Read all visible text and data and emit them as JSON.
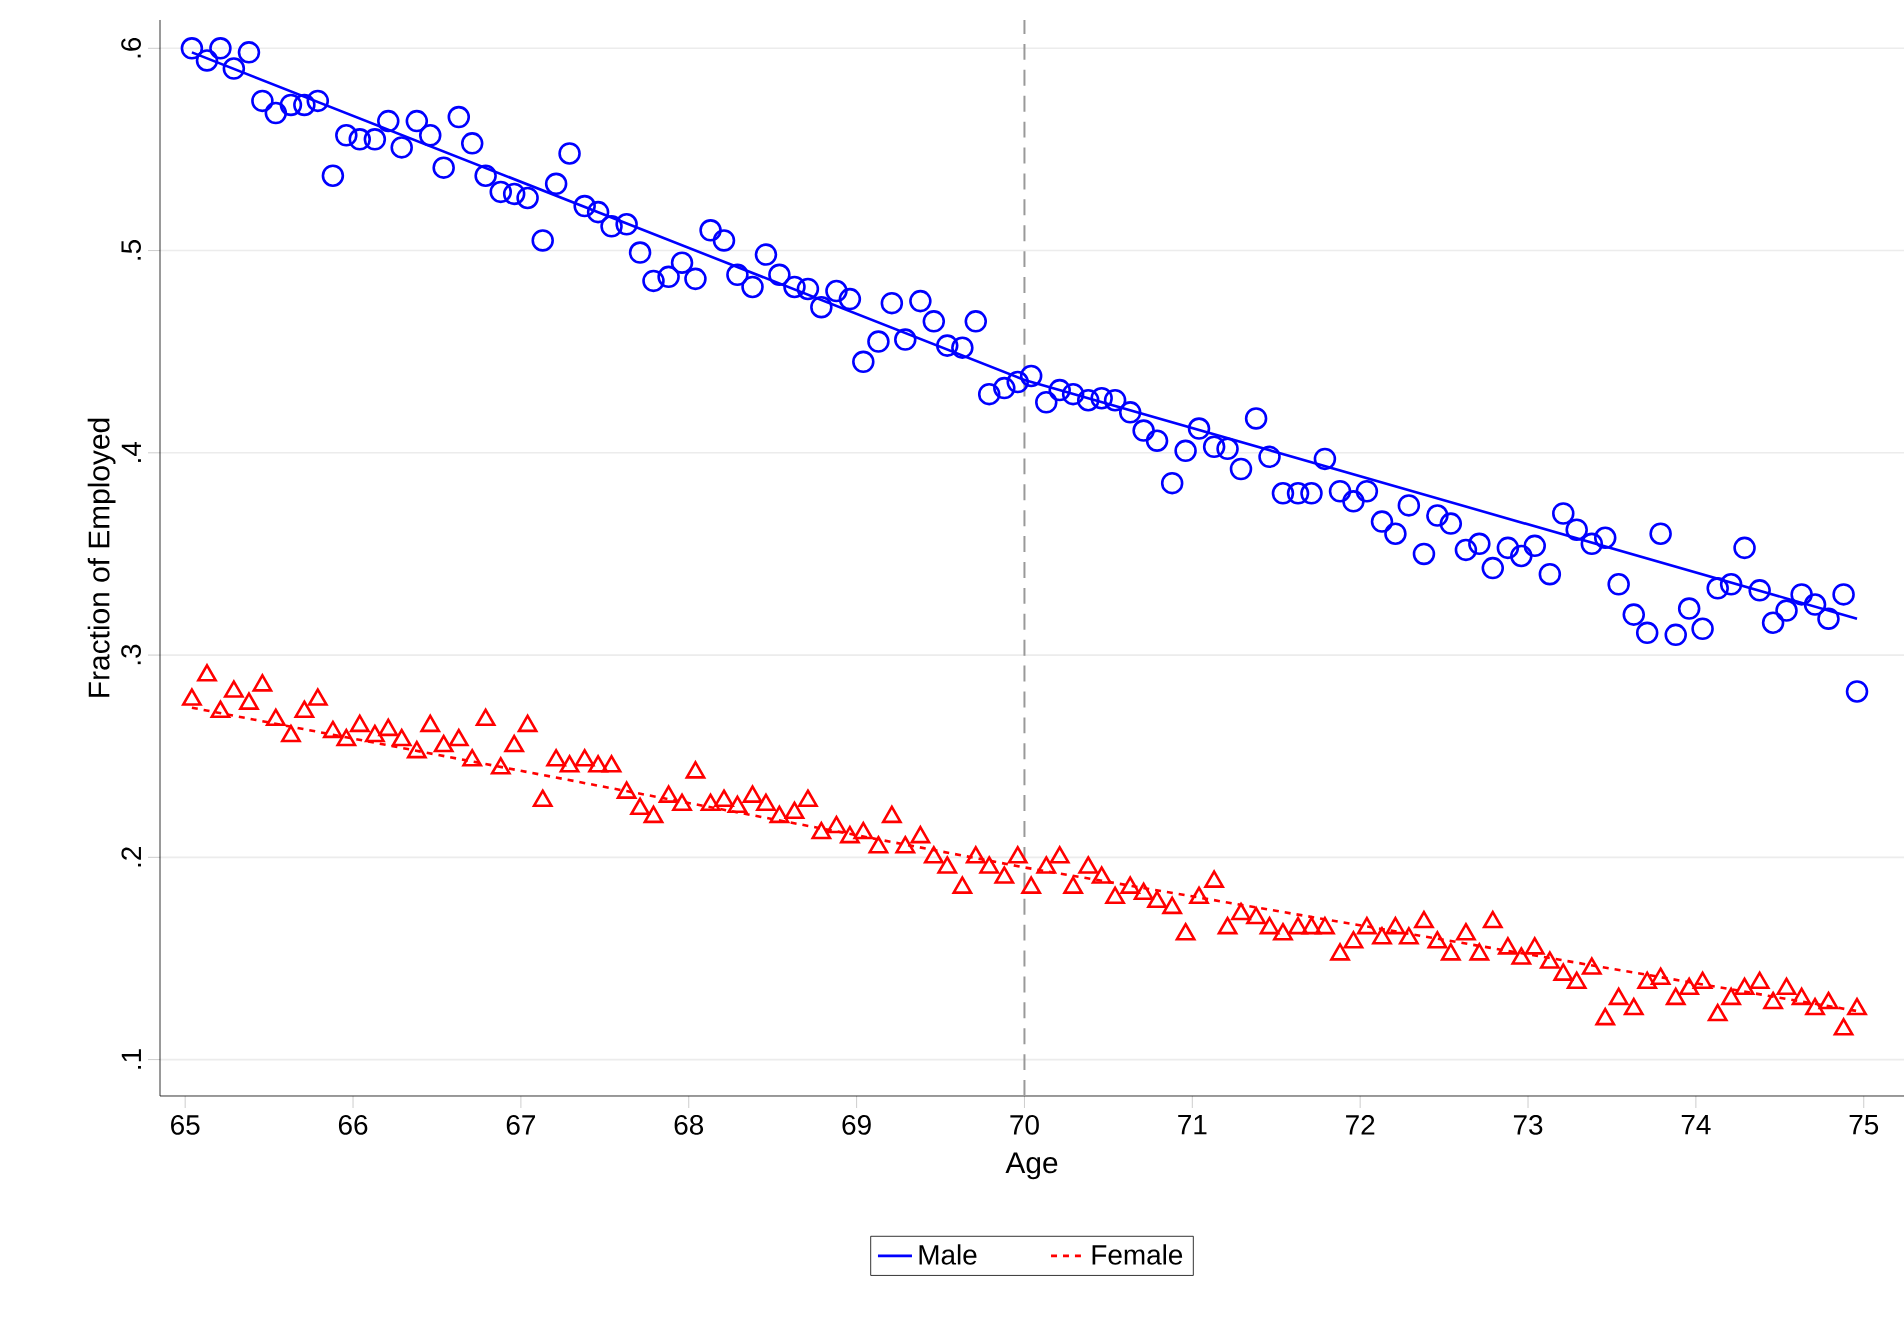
{
  "chart_data": {
    "type": "scatter",
    "xlabel": "Age",
    "ylabel": "Fraction of Employed",
    "xlim": [
      64.85,
      75.24
    ],
    "ylim": [
      0.082,
      0.614
    ],
    "xticks": [
      65,
      66,
      67,
      68,
      69,
      70,
      71,
      72,
      73,
      74,
      75
    ],
    "yticks": [
      {
        "value": 0.1,
        "label": ".1"
      },
      {
        "value": 0.2,
        "label": ".2"
      },
      {
        "value": 0.3,
        "label": ".3"
      },
      {
        "value": 0.4,
        "label": ".4"
      },
      {
        "value": 0.5,
        "label": ".5"
      },
      {
        "value": 0.6,
        "label": ".6"
      }
    ],
    "grid": "y",
    "legend": "bottom",
    "ref_lines": [
      {
        "axis": "x",
        "value": 70,
        "color": "#999999",
        "line_style": "dashed"
      }
    ],
    "x": [
      65.04,
      65.13,
      65.21,
      65.29,
      65.38,
      65.46,
      65.54,
      65.63,
      65.71,
      65.79,
      65.88,
      65.96,
      66.04,
      66.13,
      66.21,
      66.29,
      66.38,
      66.46,
      66.54,
      66.63,
      66.71,
      66.79,
      66.88,
      66.96,
      67.04,
      67.13,
      67.21,
      67.29,
      67.38,
      67.46,
      67.54,
      67.63,
      67.71,
      67.79,
      67.88,
      67.96,
      68.04,
      68.13,
      68.21,
      68.29,
      68.38,
      68.46,
      68.54,
      68.63,
      68.71,
      68.79,
      68.88,
      68.96,
      69.04,
      69.13,
      69.21,
      69.29,
      69.38,
      69.46,
      69.54,
      69.63,
      69.71,
      69.79,
      69.88,
      69.96,
      70.04,
      70.13,
      70.21,
      70.29,
      70.38,
      70.46,
      70.54,
      70.63,
      70.71,
      70.79,
      70.88,
      70.96,
      71.04,
      71.13,
      71.21,
      71.29,
      71.38,
      71.46,
      71.54,
      71.63,
      71.71,
      71.79,
      71.88,
      71.96,
      72.04,
      72.13,
      72.21,
      72.29,
      72.38,
      72.46,
      72.54,
      72.63,
      72.71,
      72.79,
      72.88,
      72.96,
      73.04,
      73.13,
      73.21,
      73.29,
      73.38,
      73.46,
      73.54,
      73.63,
      73.71,
      73.79,
      73.88,
      73.96,
      74.04,
      74.13,
      74.21,
      74.29,
      74.38,
      74.46,
      74.54,
      74.63,
      74.71,
      74.79,
      74.88,
      74.96
    ],
    "series": [
      {
        "marker": "circle",
        "color": "#0000ff",
        "values": [
          0.6,
          0.594,
          0.6,
          0.59,
          0.598,
          0.574,
          0.568,
          0.572,
          0.572,
          0.574,
          0.537,
          0.557,
          0.555,
          0.555,
          0.564,
          0.551,
          0.564,
          0.557,
          0.541,
          0.566,
          0.553,
          0.537,
          0.529,
          0.528,
          0.526,
          0.505,
          0.533,
          0.548,
          0.522,
          0.519,
          0.512,
          0.513,
          0.499,
          0.485,
          0.487,
          0.494,
          0.486,
          0.51,
          0.505,
          0.488,
          0.482,
          0.498,
          0.488,
          0.482,
          0.481,
          0.472,
          0.48,
          0.476,
          0.445,
          0.455,
          0.474,
          0.456,
          0.475,
          0.465,
          0.453,
          0.452,
          0.465,
          0.429,
          0.432,
          0.435,
          0.438,
          0.425,
          0.431,
          0.429,
          0.426,
          0.427,
          0.426,
          0.42,
          0.411,
          0.406,
          0.385,
          0.401,
          0.412,
          0.403,
          0.402,
          0.392,
          0.417,
          0.398,
          0.38,
          0.38,
          0.38,
          0.397,
          0.381,
          0.376,
          0.381,
          0.366,
          0.36,
          0.374,
          0.35,
          0.369,
          0.365,
          0.352,
          0.355,
          0.343,
          0.353,
          0.349,
          0.354,
          0.34,
          0.37,
          0.362,
          0.355,
          0.358,
          0.335,
          0.32,
          0.311,
          0.36,
          0.31,
          0.323,
          0.313,
          0.333,
          0.335,
          0.353,
          0.332,
          0.316,
          0.322,
          0.33,
          0.325,
          0.318,
          0.33,
          0.282
        ]
      },
      {
        "marker": "triangle",
        "color": "#ff0000",
        "values": [
          0.278,
          0.29,
          0.272,
          0.282,
          0.276,
          0.285,
          0.268,
          0.26,
          0.272,
          0.278,
          0.262,
          0.258,
          0.265,
          0.26,
          0.263,
          0.258,
          0.252,
          0.265,
          0.255,
          0.258,
          0.248,
          0.268,
          0.244,
          0.255,
          0.265,
          0.228,
          0.248,
          0.245,
          0.248,
          0.245,
          0.245,
          0.232,
          0.224,
          0.22,
          0.23,
          0.226,
          0.242,
          0.226,
          0.228,
          0.225,
          0.23,
          0.226,
          0.22,
          0.222,
          0.228,
          0.212,
          0.215,
          0.21,
          0.212,
          0.205,
          0.22,
          0.205,
          0.21,
          0.2,
          0.195,
          0.185,
          0.2,
          0.195,
          0.19,
          0.2,
          0.185,
          0.195,
          0.2,
          0.185,
          0.195,
          0.19,
          0.18,
          0.185,
          0.182,
          0.178,
          0.175,
          0.162,
          0.18,
          0.188,
          0.165,
          0.172,
          0.17,
          0.165,
          0.162,
          0.165,
          0.165,
          0.165,
          0.152,
          0.158,
          0.165,
          0.16,
          0.165,
          0.16,
          0.168,
          0.158,
          0.152,
          0.162,
          0.152,
          0.168,
          0.155,
          0.15,
          0.155,
          0.148,
          0.142,
          0.138,
          0.145,
          0.12,
          0.13,
          0.125,
          0.138,
          0.14,
          0.13,
          0.135,
          0.138,
          0.122,
          0.13,
          0.135,
          0.138,
          0.128,
          0.135,
          0.13,
          0.125,
          0.128,
          0.115,
          0.125
        ]
      },
      {
        "type": "line",
        "name": "Male",
        "color": "#0000ff",
        "line_style": "solid",
        "x": [
          65.04,
          70,
          74.96
        ],
        "values": [
          0.598,
          0.436,
          0.318
        ]
      },
      {
        "type": "line",
        "name": "Female",
        "color": "#ff0000",
        "line_style": "dashed",
        "x": [
          65.04,
          70,
          74.96
        ],
        "values": [
          0.274,
          0.195,
          0.124
        ]
      }
    ]
  }
}
